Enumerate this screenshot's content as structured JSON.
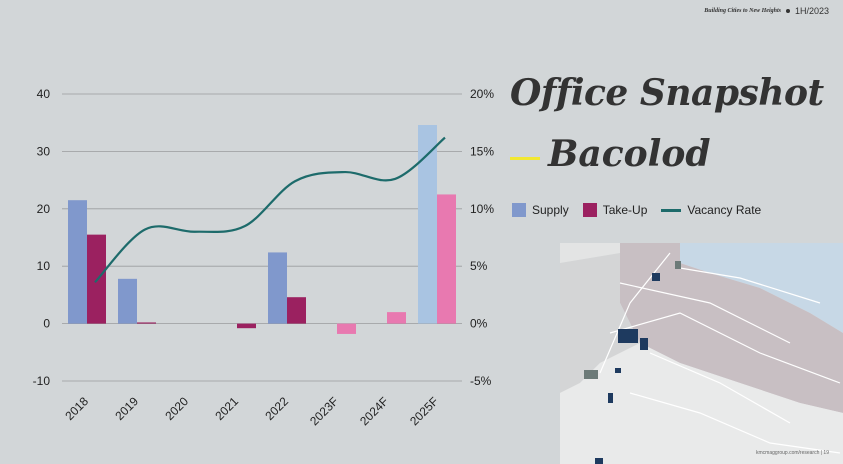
{
  "header": {
    "tagline": "Building Cities to New Heights",
    "period": "1H/2023"
  },
  "title": {
    "line1": "Office Snapshot",
    "line2": "Bacolod"
  },
  "footer": "kmcmaggroup.com/research | 19",
  "colors": {
    "supply": "#8098cc",
    "supply_forecast": "#a9c4e2",
    "takeup": "#9b2160",
    "takeup_forecast": "#e879b0",
    "vacancy": "#1d6b6b",
    "accent": "#f2e832"
  },
  "chart_data": {
    "type": "bar",
    "categories": [
      "2018",
      "2019",
      "2020",
      "2021",
      "2022",
      "2023F",
      "2024F",
      "2025F"
    ],
    "series": [
      {
        "name": "Supply",
        "type": "bar",
        "axis": "left",
        "values": [
          21.5,
          7.8,
          0,
          0,
          12.4,
          0,
          0,
          34.6
        ]
      },
      {
        "name": "Take-Up",
        "type": "bar",
        "axis": "left",
        "values": [
          15.5,
          0.2,
          0,
          -0.8,
          4.6,
          -1.8,
          2.0,
          22.5
        ]
      },
      {
        "name": "Vacancy Rate",
        "type": "line",
        "axis": "right",
        "values": [
          3.6,
          8.2,
          8.0,
          8.5,
          12.4,
          13.2,
          12.6,
          16.2
        ]
      }
    ],
    "forecast_from_index": 5,
    "y_left": {
      "min": -10,
      "max": 40,
      "ticks": [
        -10,
        0,
        10,
        20,
        30,
        40
      ]
    },
    "y_right": {
      "min": -5,
      "max": 20,
      "ticks": [
        "-5%",
        "0%",
        "5%",
        "10%",
        "15%",
        "20%"
      ]
    },
    "grid": true,
    "legend_position": "right"
  }
}
